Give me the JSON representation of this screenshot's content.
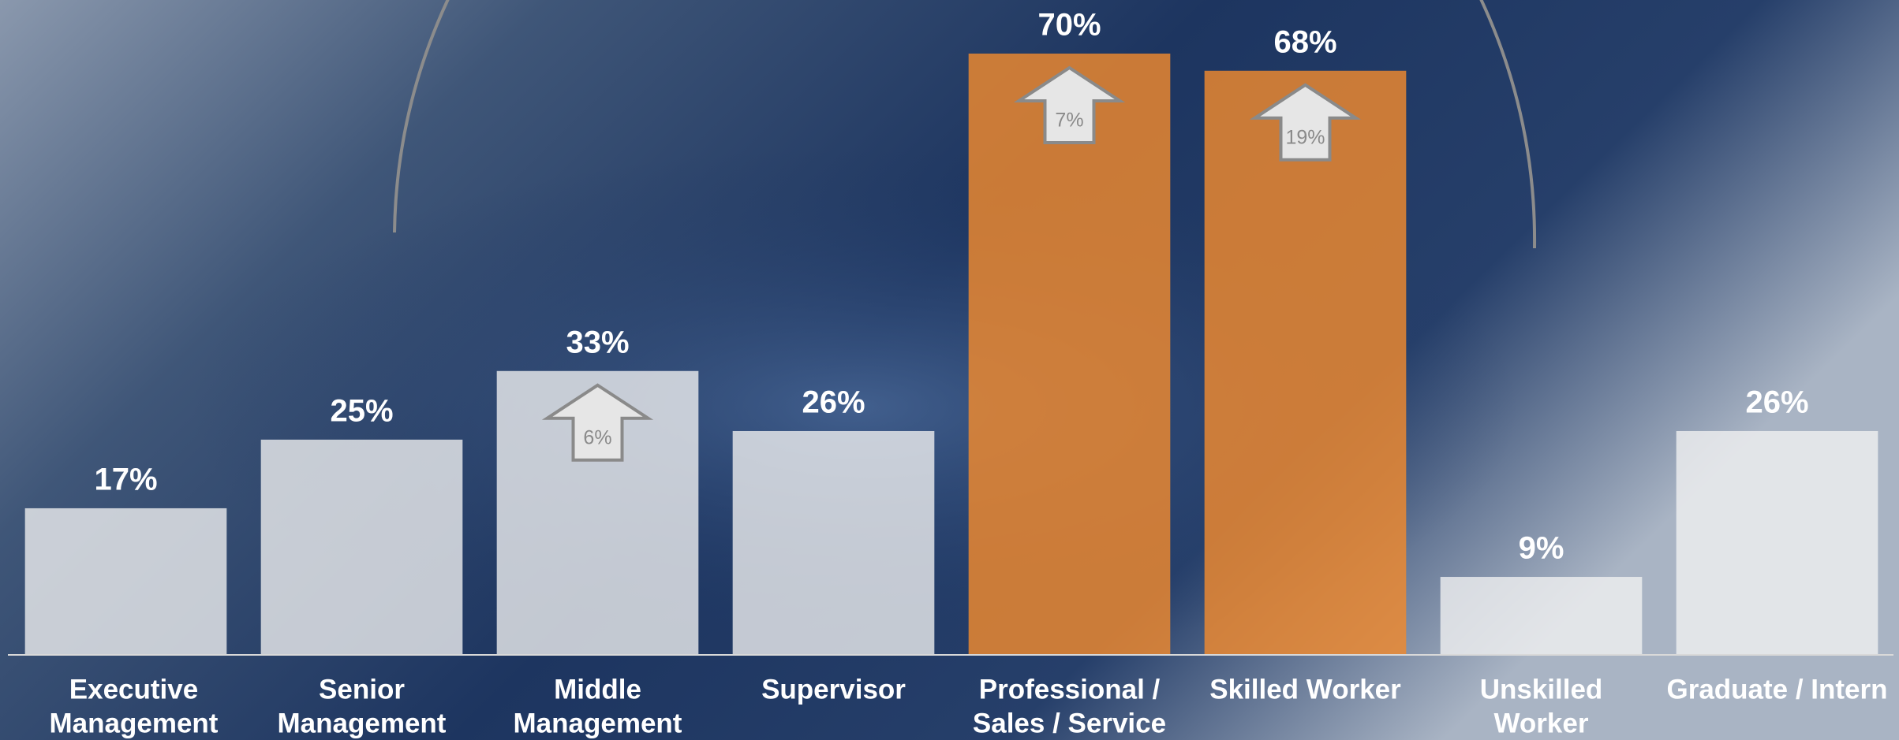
{
  "chart_data": {
    "type": "bar",
    "categories": [
      [
        "Executive",
        "Management"
      ],
      [
        "Senior",
        "Management"
      ],
      [
        "Middle",
        "Management"
      ],
      [
        "Supervisor"
      ],
      [
        "Professional /",
        "Sales / Service"
      ],
      [
        "Skilled Worker"
      ],
      [
        "Unskilled",
        "Worker"
      ],
      [
        "Graduate / Intern"
      ]
    ],
    "values": [
      17,
      25,
      33,
      26,
      70,
      68,
      9,
      26
    ],
    "value_labels": [
      "17%",
      "25%",
      "33%",
      "26%",
      "70%",
      "68%",
      "9%",
      "26%"
    ],
    "colors": [
      "#f2f2f2",
      "#f2f2f2",
      "#f2f2f2",
      "#f2f2f2",
      "#f08a2e",
      "#f08a2e",
      "#f2f2f2",
      "#f2f2f2"
    ],
    "arrow_labels": [
      null,
      null,
      "6%",
      null,
      "7%",
      "19%",
      null,
      null
    ],
    "ylim": [
      0,
      70
    ]
  }
}
